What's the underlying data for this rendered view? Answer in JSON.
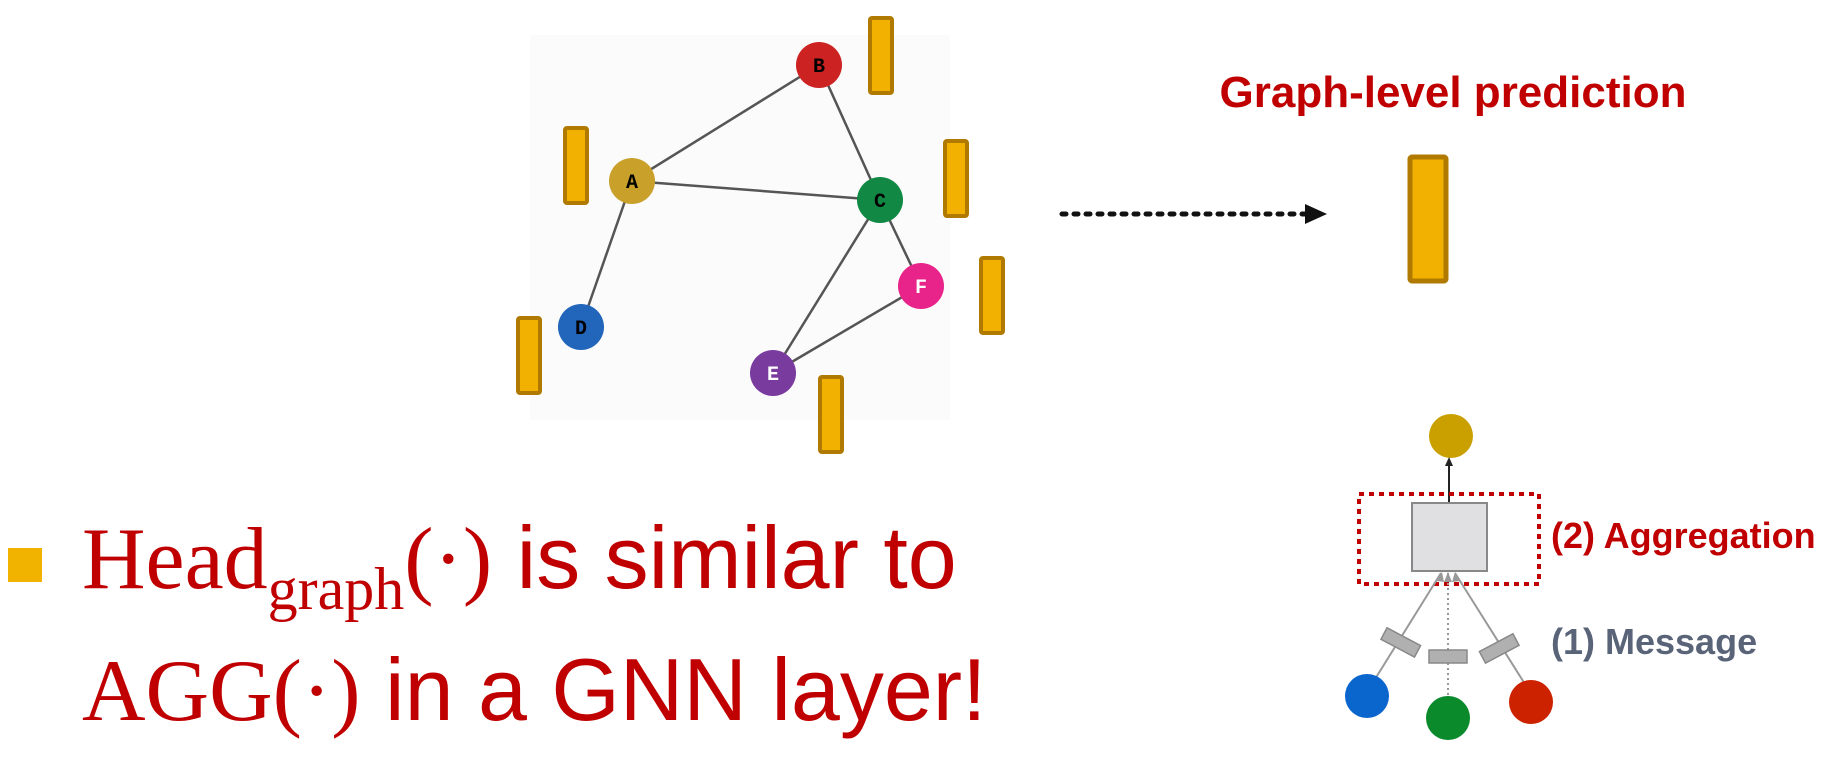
{
  "graph": {
    "nodes": [
      {
        "id": "A",
        "label": "A",
        "color": "#c9a02a"
      },
      {
        "id": "B",
        "label": "B",
        "color": "#cc2222"
      },
      {
        "id": "C",
        "label": "C",
        "color": "#118844"
      },
      {
        "id": "D",
        "label": "D",
        "color": "#2266bb"
      },
      {
        "id": "E",
        "label": "E",
        "color": "#7a3b9e"
      },
      {
        "id": "F",
        "label": "F",
        "color": "#e8248a"
      }
    ],
    "edges": [
      [
        "A",
        "B"
      ],
      [
        "A",
        "C"
      ],
      [
        "B",
        "C"
      ],
      [
        "A",
        "D"
      ],
      [
        "C",
        "E"
      ],
      [
        "C",
        "F"
      ],
      [
        "E",
        "F"
      ]
    ]
  },
  "prediction_title": "Graph-level prediction",
  "aggregation_label": "(2) Aggregation",
  "message_label": "(1) Message",
  "bullet": {
    "line1_head": "Head",
    "line1_sub": "graph",
    "line1_paren": "(·)",
    "line1_rest": " is similar to",
    "line2_agg": "AGG(·)",
    "line2_rest": " in a GNN layer!"
  },
  "colors": {
    "accent_red": "#c00000",
    "embedding_fill": "#f2b000",
    "embedding_stroke": "#b07a00",
    "message_gray": "#596478"
  }
}
